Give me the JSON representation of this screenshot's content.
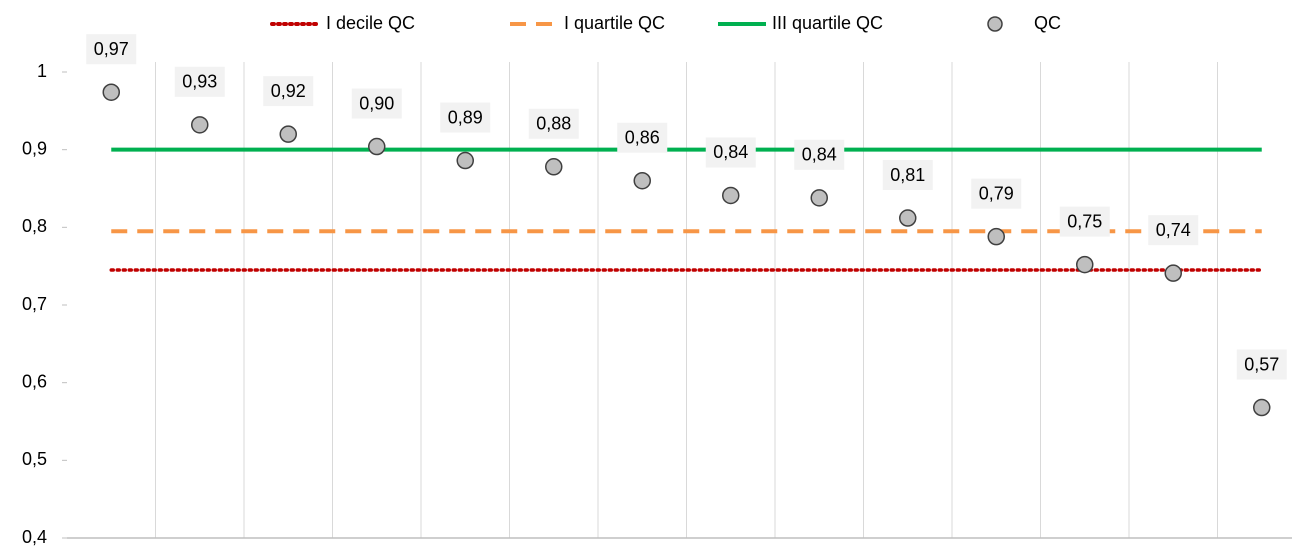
{
  "chart_data": {
    "type": "line",
    "categories": [
      null,
      null,
      null,
      null,
      null,
      null,
      null,
      null,
      null,
      null,
      null,
      null,
      null,
      null
    ],
    "series": [
      {
        "name": "I decile QC",
        "color": "#c00000",
        "style": "dotted",
        "values": [
          0.745,
          0.745,
          0.745,
          0.745,
          0.745,
          0.745,
          0.745,
          0.745,
          0.745,
          0.745,
          0.745,
          0.745,
          0.745,
          0.745
        ]
      },
      {
        "name": "I quartile QC",
        "color": "#f79646",
        "style": "dashed",
        "values": [
          0.795,
          0.795,
          0.795,
          0.795,
          0.795,
          0.795,
          0.795,
          0.795,
          0.795,
          0.795,
          0.795,
          0.795,
          0.795,
          0.795
        ]
      },
      {
        "name": "III quartile QC",
        "color": "#00b050",
        "style": "solid",
        "values": [
          0.9,
          0.9,
          0.9,
          0.9,
          0.9,
          0.9,
          0.9,
          0.9,
          0.9,
          0.9,
          0.9,
          0.9,
          0.9,
          0.9
        ]
      },
      {
        "name": "QC",
        "color": "#bfbfbf",
        "style": "markers",
        "values": [
          0.974,
          0.932,
          0.92,
          0.904,
          0.886,
          0.878,
          0.86,
          0.841,
          0.838,
          0.812,
          0.788,
          0.752,
          0.741,
          0.568
        ],
        "value_labels": [
          "0,97",
          "0,93",
          "0,92",
          "0,90",
          "0,89",
          "0,88",
          "0,86",
          "0,84",
          "0,84",
          "0,81",
          "0,79",
          "0,75",
          "0,74",
          "0,57"
        ]
      }
    ],
    "ylim": [
      0.4,
      1
    ],
    "yticks": [
      {
        "value": 0.4,
        "label": "0,4"
      },
      {
        "value": 0.5,
        "label": "0,5"
      },
      {
        "value": 0.6,
        "label": "0,6"
      },
      {
        "value": 0.7,
        "label": "0,7"
      },
      {
        "value": 0.8,
        "label": "0,8"
      },
      {
        "value": 0.9,
        "label": "0,9"
      },
      1
    ],
    "legend": "top",
    "grid": "vertical"
  }
}
